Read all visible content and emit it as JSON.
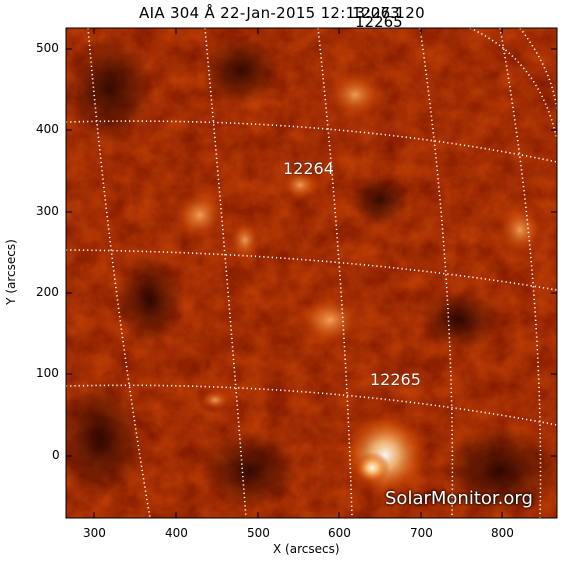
{
  "title": {
    "main": "AIA 304 Å 22-Jan-2015 12:13:07.120",
    "overlap_labels": [
      "12263",
      "12265"
    ]
  },
  "axes": {
    "x_label": "X (arcsecs)",
    "y_label": "Y (arcsecs)",
    "x_ticks": [
      "300",
      "400",
      "500",
      "600",
      "700",
      "800"
    ],
    "y_ticks": [
      "500",
      "400",
      "300",
      "200",
      "100",
      "0"
    ]
  },
  "regions": [
    {
      "id": "12264",
      "label": "12264"
    },
    {
      "id": "12265",
      "label": "12265"
    }
  ],
  "watermark": "SolarMonitor.org",
  "colors": {
    "frame": "#000000",
    "grid": "#ffffff",
    "label_text": "#ffffff",
    "colormap": [
      "#1a0000",
      "#5a0800",
      "#9a2100",
      "#d24600",
      "#f07a18",
      "#ffc070",
      "#ffffff"
    ]
  }
}
